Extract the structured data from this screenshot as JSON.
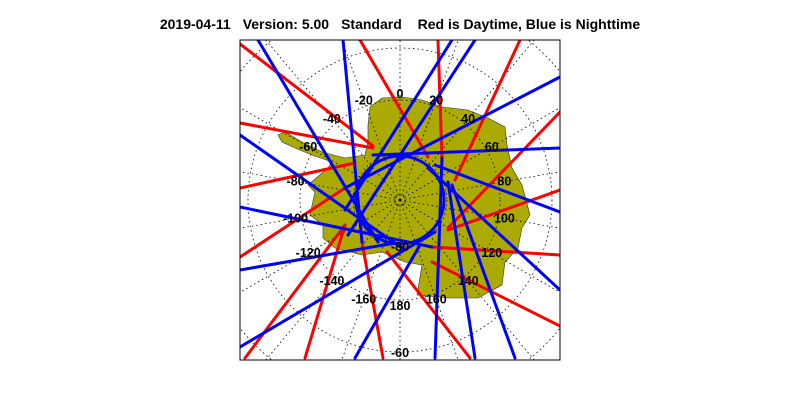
{
  "header": {
    "date": "2019-04-11",
    "version": "Version: 5.00",
    "mode": "Standard",
    "legend": "Red is Daytime, Blue is Nighttime"
  },
  "map": {
    "projection": "south polar stereographic",
    "region": "Antarctica",
    "land_color": "#aaaa00",
    "day_color": "#ff0000",
    "night_color": "#0000ff",
    "longitude_labels": [
      "0",
      "20",
      "40",
      "60",
      "80",
      "100",
      "120",
      "140",
      "160",
      "180",
      "-160",
      "-140",
      "-120",
      "-100",
      "-80",
      "-60",
      "-40",
      "-20"
    ],
    "longitudes": [
      0,
      20,
      40,
      60,
      80,
      100,
      120,
      140,
      160,
      180,
      -160,
      -140,
      -120,
      -100,
      -80,
      -60,
      -40,
      -20
    ],
    "latitude_labels": [
      "-80",
      "-60"
    ]
  }
}
